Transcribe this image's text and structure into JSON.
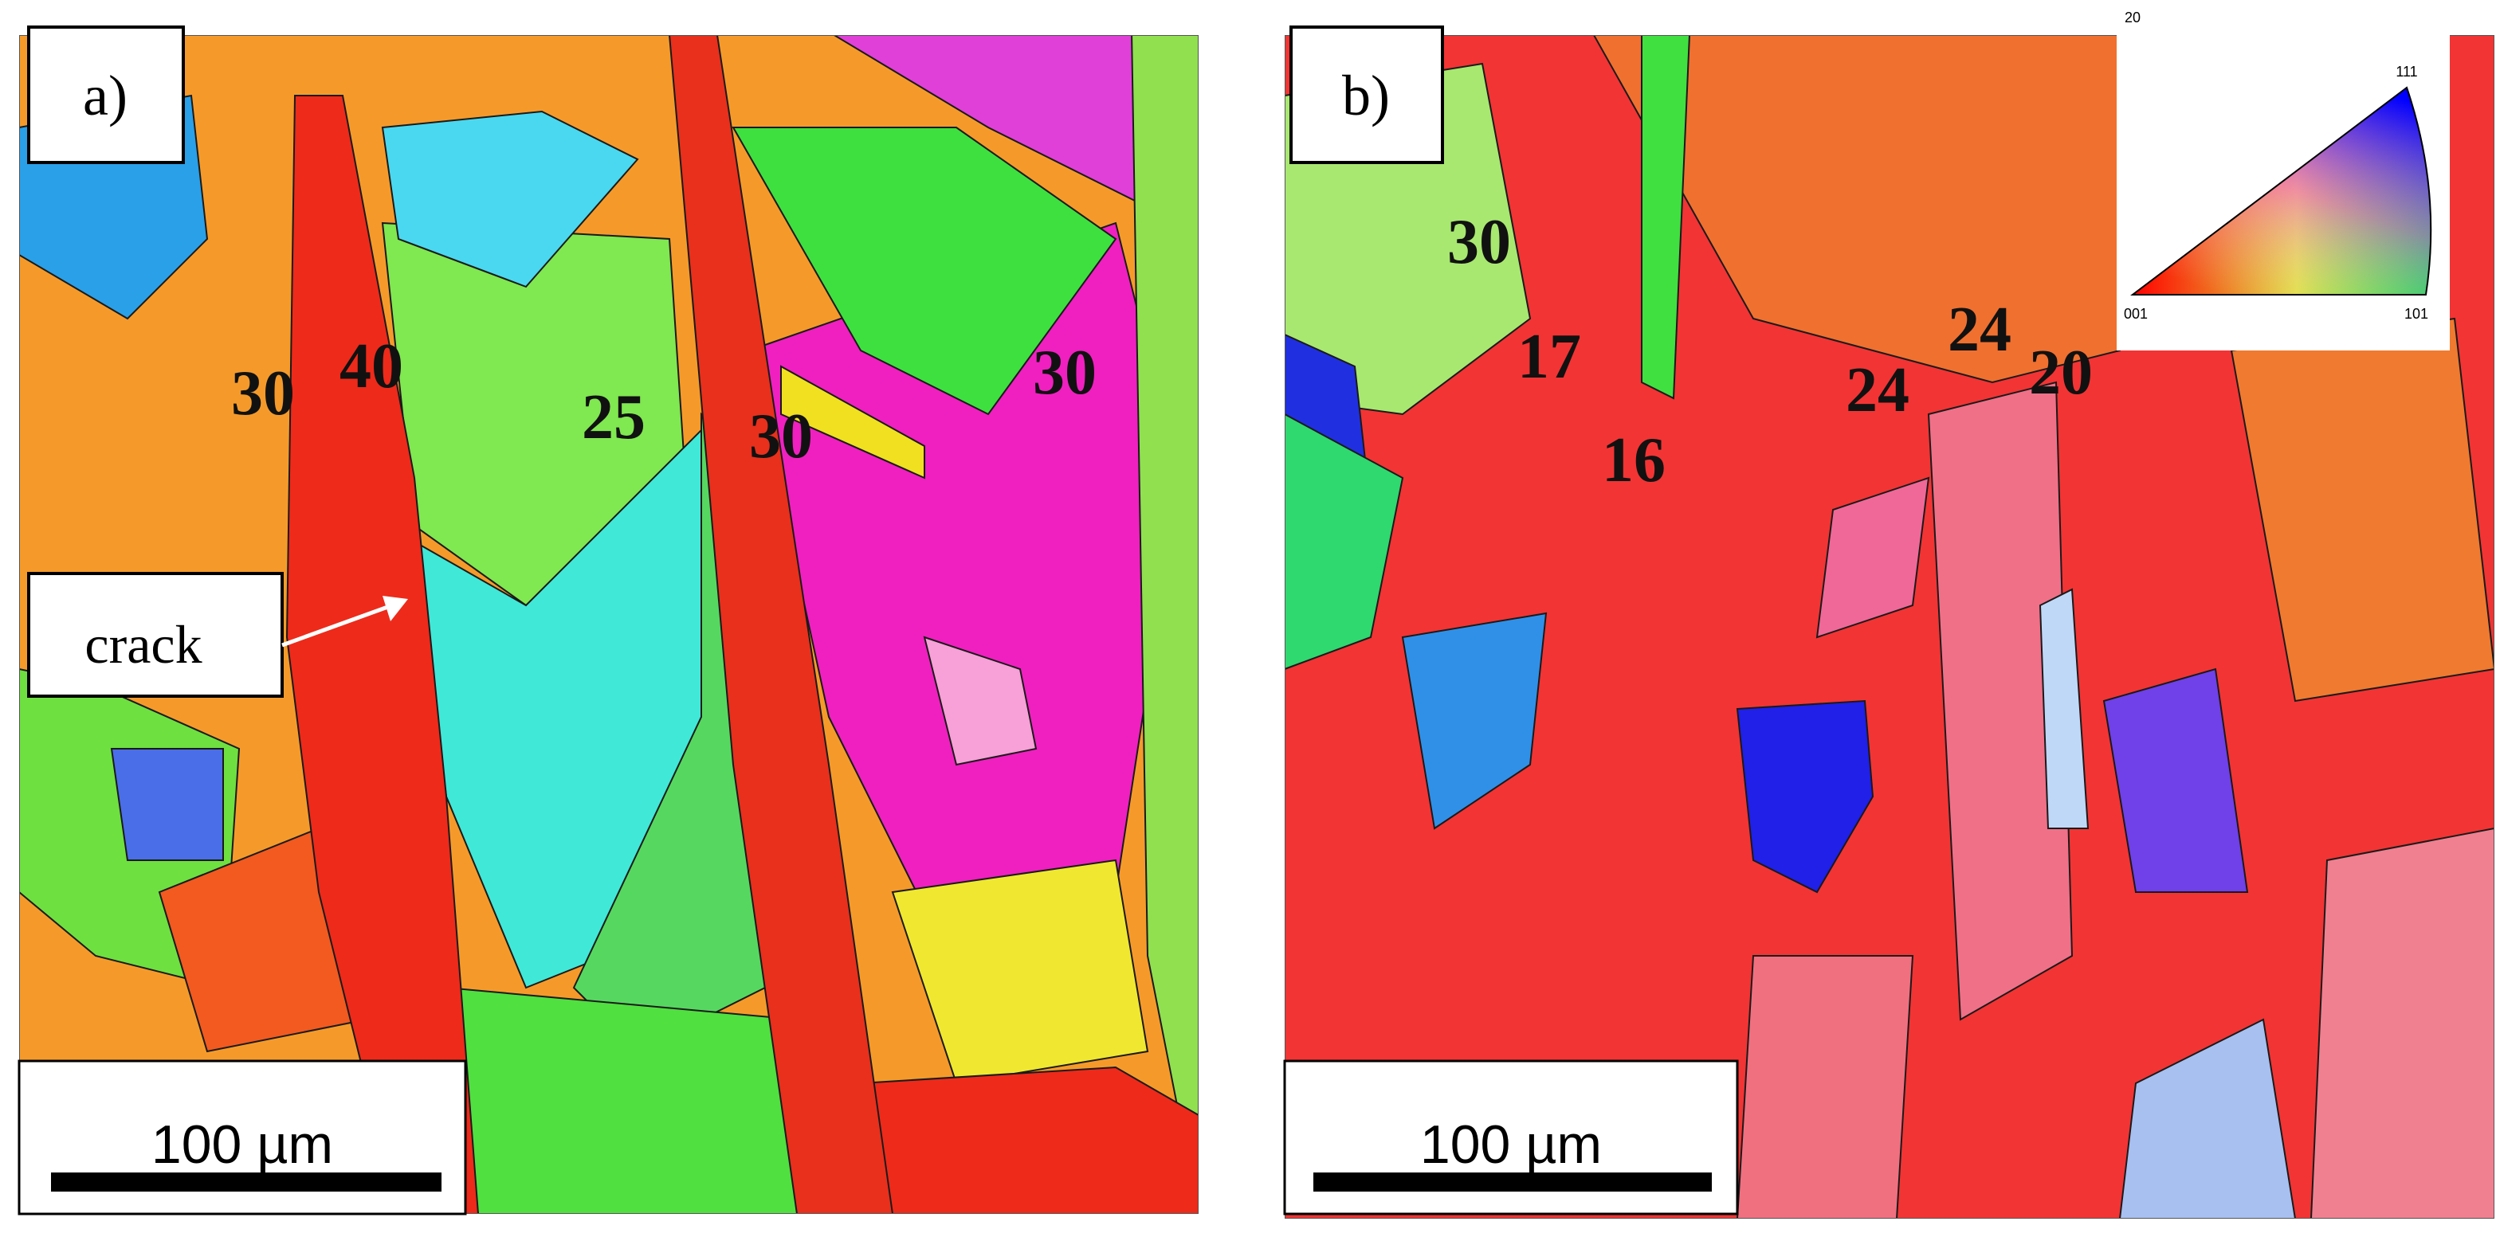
{
  "panels": [
    {
      "label": "a)",
      "annotation": "crack",
      "scale_bar": "100 µm",
      "grain_labels": [
        30,
        40,
        25,
        30,
        30
      ]
    },
    {
      "label": "b)",
      "scale_bar": "100 µm",
      "grain_labels": [
        30,
        17,
        16,
        24,
        24,
        20
      ],
      "inset": {
        "corner_labels": [
          "20",
          "111",
          "001",
          "101"
        ]
      }
    }
  ]
}
